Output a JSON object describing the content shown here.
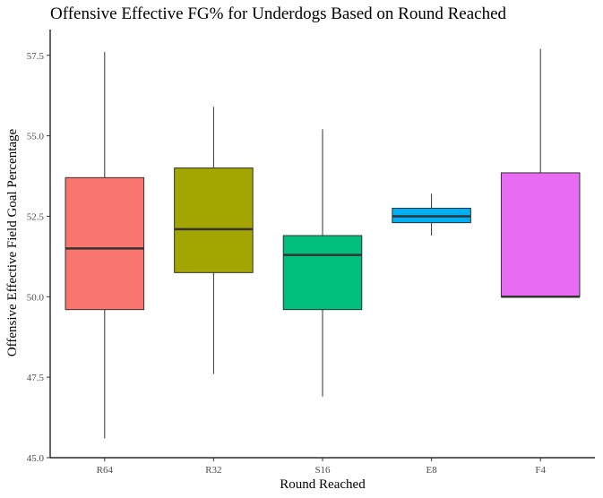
{
  "chart_data": {
    "type": "box",
    "title": "Offensive Effective FG% for Underdogs Based on Round Reached",
    "xlabel": "Round Reached",
    "ylabel": "Offensive Effective Field Goal Percentage",
    "ylim": [
      45.0,
      58.3
    ],
    "yticks": [
      "45.0",
      "47.5",
      "50.0",
      "52.5",
      "55.0",
      "57.5"
    ],
    "grid": false,
    "legend": "none",
    "categories": [
      "R64",
      "R32",
      "S16",
      "E8",
      "F4"
    ],
    "boxes": [
      {
        "category": "R64",
        "whisker_low": 45.6,
        "q1": 49.6,
        "median": 51.5,
        "q3": 53.7,
        "whisker_high": 57.6,
        "color": "#F8766D"
      },
      {
        "category": "R32",
        "whisker_low": 47.6,
        "q1": 50.75,
        "median": 52.1,
        "q3": 54.0,
        "whisker_high": 55.9,
        "color": "#A3A500"
      },
      {
        "category": "S16",
        "whisker_low": 46.9,
        "q1": 49.6,
        "median": 51.3,
        "q3": 51.9,
        "whisker_high": 55.2,
        "color": "#00BF7D"
      },
      {
        "category": "E8",
        "whisker_low": 51.9,
        "q1": 52.3,
        "median": 52.5,
        "q3": 52.75,
        "whisker_high": 53.2,
        "color": "#00B0F6"
      },
      {
        "category": "F4",
        "whisker_low": 50.0,
        "q1": 50.0,
        "median": 50.0,
        "q3": 53.85,
        "whisker_high": 57.7,
        "color": "#E76BF3"
      }
    ]
  }
}
